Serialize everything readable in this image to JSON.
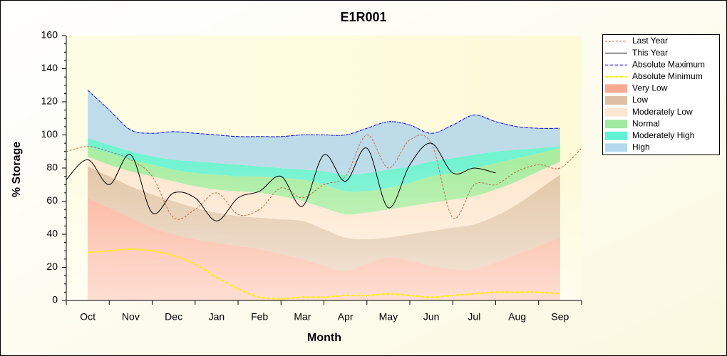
{
  "chart_data": {
    "type": "line",
    "title": "E1R001",
    "x_label": "Month",
    "y_label": "% Storage",
    "categories": [
      null,
      "Oct",
      null,
      "Nov",
      null,
      "Dec",
      null,
      "Jan",
      null,
      "Feb",
      null,
      "Mar",
      null,
      "Apr",
      null,
      "May",
      null,
      "Jun",
      null,
      "Jul",
      null,
      "Aug",
      null,
      "Sep",
      null
    ],
    "ylim": [
      0,
      160
    ],
    "yticks": [
      0,
      20,
      40,
      60,
      80,
      100,
      120,
      140,
      160
    ],
    "legend": "right",
    "series": [
      {
        "name": "Last Year",
        "color": "#c07040",
        "dash": "3,2",
        "values": [
          90,
          93,
          90,
          85,
          75,
          50,
          55,
          65,
          52,
          55,
          68,
          62,
          70,
          75,
          100,
          80,
          97,
          95,
          50,
          70,
          70,
          78,
          82,
          80,
          92
        ]
      },
      {
        "name": "This Year",
        "color": "#000000",
        "values": [
          73,
          85,
          70,
          88,
          53,
          65,
          62,
          48,
          62,
          66,
          75,
          57,
          88,
          72,
          92,
          56,
          82,
          95,
          77,
          80,
          77,
          null,
          null,
          null,
          null
        ]
      },
      {
        "name": "Absolute Maximum",
        "color": "#0000ff",
        "dash": "4,1,1,1",
        "values": [
          null,
          127,
          115,
          103,
          101,
          102,
          101,
          100,
          99,
          99,
          99,
          100,
          100,
          100,
          104,
          108,
          106,
          101,
          106,
          112,
          108,
          105,
          104,
          104,
          null
        ]
      },
      {
        "name": "Absolute Minimum",
        "color": "#ffee00",
        "dash": "5,2",
        "width": 2,
        "values": [
          null,
          29,
          30,
          31,
          30,
          27,
          22,
          14,
          7,
          2,
          1,
          2,
          2,
          3,
          3,
          4,
          3,
          2,
          3,
          4,
          5,
          5,
          5,
          4,
          null
        ]
      },
      {
        "name": "Very Low",
        "color": "#f99a80",
        "fill": true,
        "values": [
          null,
          62,
          56,
          50,
          44,
          40,
          37,
          35,
          33,
          31,
          28,
          25,
          21,
          18,
          22,
          26,
          24,
          21,
          19,
          19,
          23,
          28,
          33,
          38,
          null
        ]
      },
      {
        "name": "Low",
        "color": "#d8b494",
        "fill": true,
        "values": [
          null,
          19,
          19,
          19,
          20,
          20,
          19,
          18,
          18,
          19,
          21,
          23,
          22,
          20,
          15,
          12,
          16,
          21,
          25,
          27,
          28,
          30,
          34,
          38,
          null
        ]
      },
      {
        "name": "Moderately Low",
        "color": "#fde0c8",
        "fill": true,
        "values": [
          null,
          6,
          7,
          9,
          11,
          12,
          13,
          14,
          15,
          15,
          14,
          12,
          13,
          14,
          16,
          17,
          17,
          17,
          17,
          17,
          16,
          14,
          11,
          8,
          null
        ]
      },
      {
        "name": "Normal",
        "color": "#8ee88e",
        "fill": true,
        "values": [
          null,
          6,
          7,
          7,
          7,
          7,
          8,
          9,
          9,
          10,
          11,
          13,
          14,
          14,
          13,
          13,
          14,
          16,
          16,
          17,
          16,
          14,
          11,
          8,
          null
        ]
      },
      {
        "name": "Moderately High",
        "color": "#44f0cc",
        "fill": true,
        "values": [
          null,
          5,
          5,
          5,
          5,
          6,
          7,
          7,
          7,
          6,
          6,
          6,
          8,
          10,
          11,
          11,
          10,
          9,
          9,
          8,
          7,
          5,
          3,
          1,
          null
        ]
      },
      {
        "name": "High",
        "color": "#a8d0ec",
        "fill": true,
        "values": [
          null,
          29,
          21,
          13,
          14,
          17,
          17,
          17,
          17,
          18,
          19,
          21,
          22,
          24,
          27,
          29,
          25,
          17,
          20,
          24,
          18,
          14,
          12,
          11,
          null
        ]
      }
    ]
  }
}
